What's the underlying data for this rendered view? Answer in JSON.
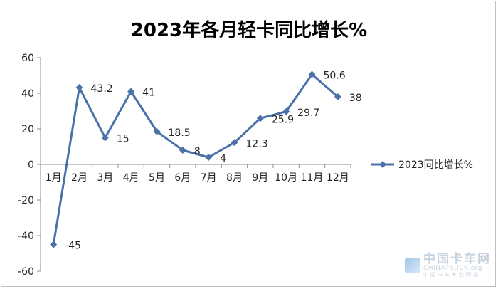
{
  "chart_data": {
    "type": "line",
    "title": "2023年各月轻卡同比增长%",
    "categories": [
      "1月",
      "2月",
      "3月",
      "4月",
      "5月",
      "6月",
      "7月",
      "8月",
      "9月",
      "10月",
      "11月",
      "12月"
    ],
    "series": [
      {
        "name": "2023同比增长%",
        "values": [
          -45,
          43.2,
          15,
          41,
          18.5,
          8,
          4,
          12.3,
          25.9,
          29.7,
          50.6,
          38
        ],
        "labels": [
          "-45",
          "43.2",
          "15",
          "41",
          "18.5",
          "8",
          "4",
          "12.3",
          "25.9",
          "29.7",
          "50.6",
          "38"
        ],
        "color": "#4a72a8"
      }
    ],
    "ylim": [
      -60,
      60
    ],
    "yticks": [
      "60",
      "40",
      "20",
      "0",
      "-20",
      "-40",
      "-60"
    ],
    "xlabel": "",
    "ylabel": "",
    "grid": false,
    "legend": "right"
  },
  "watermark": {
    "cn": "中国卡车网",
    "en": "CHINATRUCK",
    "en_suffix": ".org",
    "sub": "中国卡车专业网站"
  }
}
